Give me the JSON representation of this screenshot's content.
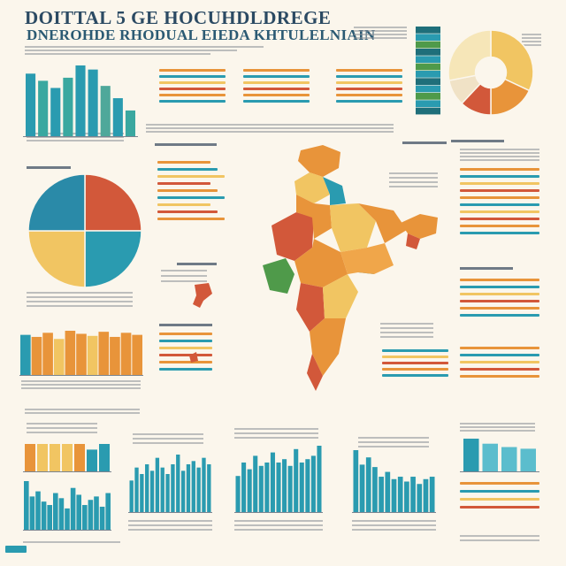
{
  "header": {
    "title_line1": "DOITTAL 5 GE HOCUHDLDREGE",
    "title_line2": "DNEROHDE RHODUAL EIEDA KHTULELNIAIN"
  },
  "colors": {
    "teal": "#2a9bb0",
    "dark_teal": "#1f6f7a",
    "orange": "#e8943a",
    "yellow": "#f1c562",
    "red": "#d2583a",
    "green": "#4f9a4a",
    "cream": "#fbf6ec"
  },
  "chart_data": [
    {
      "type": "bar",
      "id": "top-left-bars",
      "values": [
        62,
        55,
        48,
        58,
        70,
        66,
        50,
        38,
        26
      ],
      "colors": [
        "#2a9bb0",
        "#3aa8a0",
        "#2a9bb0",
        "#3aa8a0",
        "#2a9bb0",
        "#2a9bb0",
        "#4fa89a",
        "#2a9bb0",
        "#3aa8a0"
      ]
    },
    {
      "type": "pie",
      "id": "left-pie",
      "slices": [
        {
          "value": 25,
          "color": "#d2583a"
        },
        {
          "value": 25,
          "color": "#2a9bb0"
        },
        {
          "value": 25,
          "color": "#f1c562"
        },
        {
          "value": 25,
          "color": "#2a8aa8"
        }
      ]
    },
    {
      "type": "pie",
      "id": "top-right-donut",
      "slices": [
        {
          "value": 32,
          "color": "#f1c562"
        },
        {
          "value": 18,
          "color": "#e8943a"
        },
        {
          "value": 12,
          "color": "#d2583a"
        },
        {
          "value": 10,
          "color": "#f0e2c6"
        },
        {
          "value": 28,
          "color": "#f6e6b8"
        }
      ]
    },
    {
      "type": "bar",
      "id": "mid-left-stacked",
      "values": [
        40,
        38,
        42,
        36,
        44,
        41,
        39,
        43,
        38,
        42,
        40
      ],
      "colors": [
        "#2a9bb0",
        "#e8943a",
        "#e8943a",
        "#f1c562",
        "#e8943a",
        "#e8943a",
        "#f1c562",
        "#e8943a",
        "#e8943a",
        "#e8943a",
        "#e8943a"
      ]
    },
    {
      "type": "bar",
      "id": "bottom-left-top-bars",
      "values": [
        30,
        30,
        30,
        30,
        30,
        24,
        30
      ],
      "colors": [
        "#e8943a",
        "#f1c562",
        "#f1c562",
        "#f1c562",
        "#e8943a",
        "#2a9bb0",
        "#2a9bb0"
      ]
    },
    {
      "type": "bar",
      "id": "bottom-left-bars",
      "values": [
        58,
        40,
        46,
        34,
        30,
        44,
        38,
        26,
        50,
        42,
        30,
        36,
        40,
        28,
        44
      ],
      "colors": [
        "#2a9bb0"
      ]
    },
    {
      "type": "bar",
      "id": "bottom-mid1-bars",
      "values": [
        20,
        28,
        24,
        30,
        26,
        34,
        28,
        24,
        30,
        36,
        26,
        30,
        32,
        28,
        34,
        30
      ],
      "colors": [
        "#2a9bb0"
      ]
    },
    {
      "type": "bar",
      "id": "bottom-mid2-bars",
      "values": [
        22,
        30,
        26,
        34,
        28,
        30,
        36,
        30,
        32,
        28,
        38,
        30,
        32,
        34,
        40
      ],
      "colors": [
        "#2a9bb0"
      ]
    },
    {
      "type": "bar",
      "id": "bottom-mid3-bars",
      "values": [
        52,
        40,
        46,
        38,
        30,
        34,
        28,
        30,
        26,
        30,
        24,
        28,
        30
      ],
      "colors": [
        "#2a9bb0"
      ]
    },
    {
      "type": "bar",
      "id": "bottom-right-bars",
      "values": [
        40,
        34,
        30,
        28
      ],
      "colors": [
        "#2a9bb0",
        "#5bbdcd",
        "#5bbdcd",
        "#5bbdcd"
      ]
    }
  ]
}
